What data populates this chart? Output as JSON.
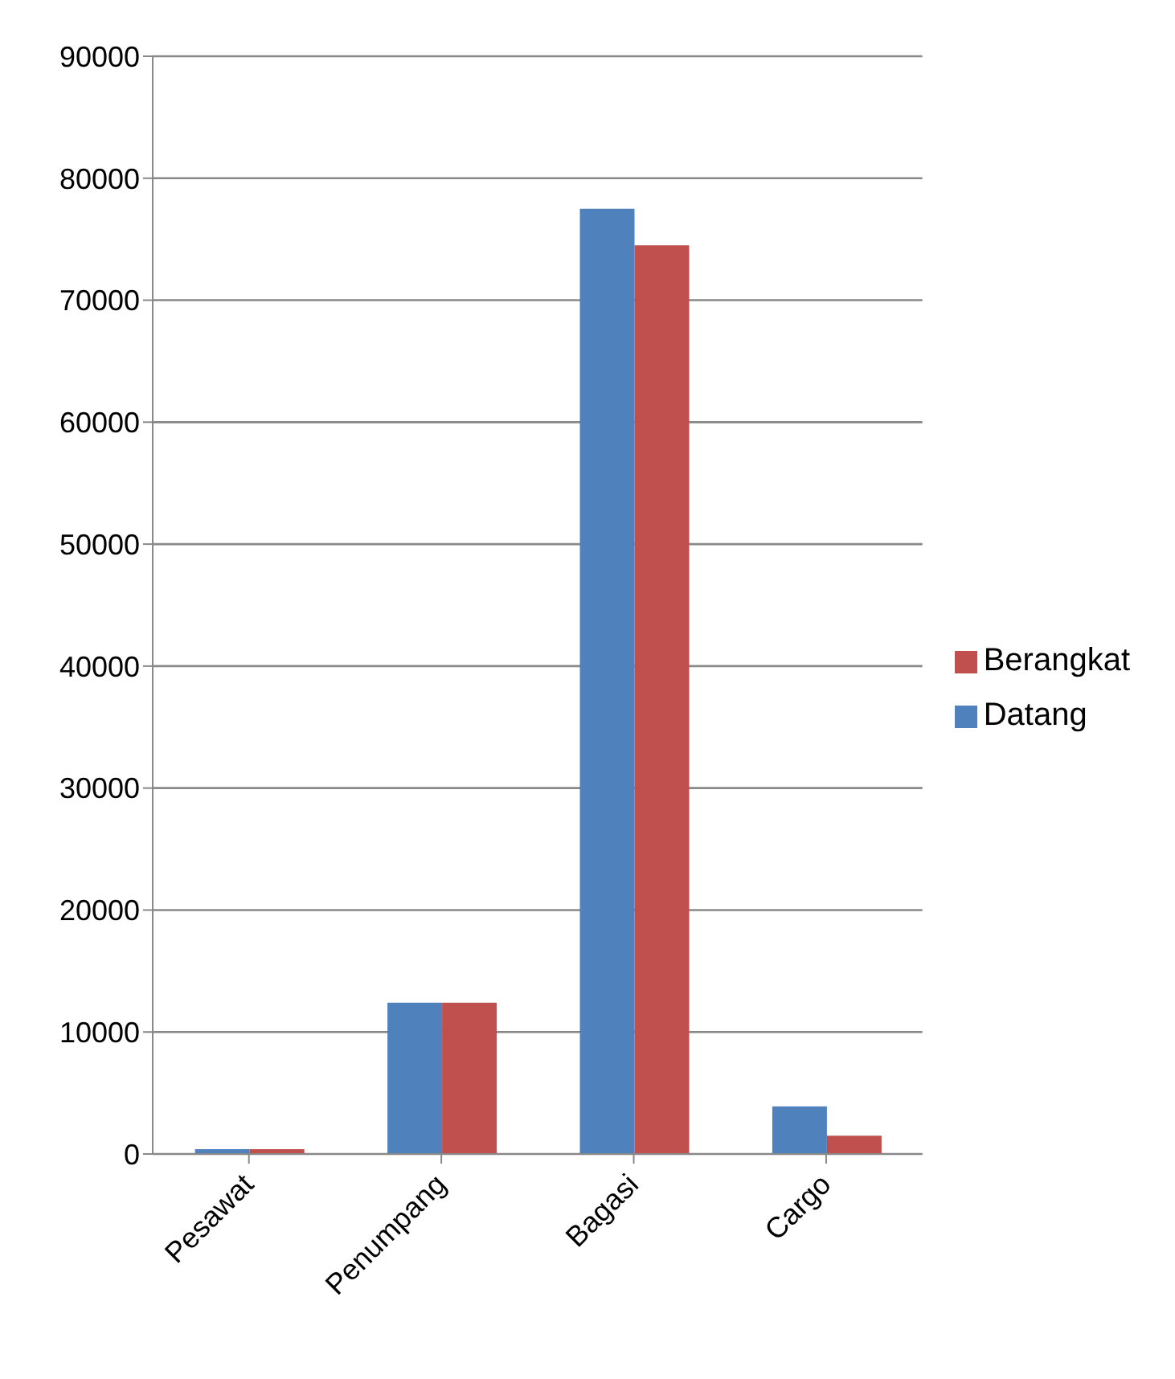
{
  "chart_data": {
    "type": "bar",
    "categories": [
      "Pesawat",
      "Penumpang",
      "Bagasi",
      "Cargo"
    ],
    "series": [
      {
        "name": "Datang",
        "color": "#4f81bd",
        "values": [
          400,
          12400,
          77500,
          3900
        ]
      },
      {
        "name": "Berangkat",
        "color": "#c0504d",
        "values": [
          400,
          12400,
          74500,
          1500
        ]
      }
    ],
    "ylim": [
      0,
      90000
    ],
    "yticks": [
      0,
      10000,
      20000,
      30000,
      40000,
      50000,
      60000,
      70000,
      80000,
      90000
    ],
    "grid": "y",
    "legend": "right"
  }
}
